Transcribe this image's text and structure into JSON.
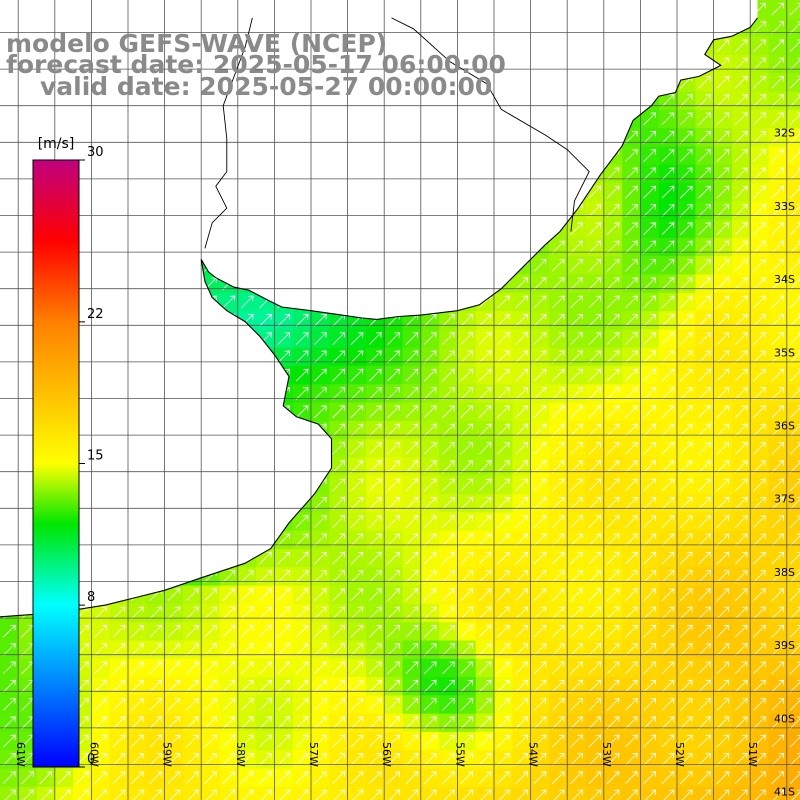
{
  "titles": {
    "model": "modelo GEFS-WAVE (NCEP)",
    "forecast": "forecast date: 2025-05-17 06:00:00",
    "valid": "valid date: 2025-05-27 00:00:00"
  },
  "colorbar": {
    "unit": "[m/s]",
    "min": 0,
    "max": 30,
    "ticks": [
      {
        "value": 0,
        "label": "0"
      },
      {
        "value": 8,
        "label": "8"
      },
      {
        "value": 15,
        "label": "15"
      },
      {
        "value": 22,
        "label": "22"
      },
      {
        "value": 30,
        "label": "30"
      }
    ],
    "colors": [
      "#0000ff",
      "#00ffff",
      "#00e600",
      "#ffff00",
      "#ff8000",
      "#ff0000",
      "#c00080"
    ]
  },
  "map": {
    "lon_range": [
      -61.5,
      -50.8
    ],
    "lat_range": [
      -41.3,
      -30.8
    ],
    "lon_ticks": [
      {
        "value": -61,
        "label": "61W"
      },
      {
        "value": -60,
        "label": "60W"
      },
      {
        "value": -59,
        "label": "59W"
      },
      {
        "value": -58,
        "label": "58W"
      },
      {
        "value": -57,
        "label": "57W"
      },
      {
        "value": -56,
        "label": "56W"
      },
      {
        "value": -55,
        "label": "55W"
      },
      {
        "value": -54,
        "label": "54W"
      },
      {
        "value": -53,
        "label": "53W"
      },
      {
        "value": -52,
        "label": "52W"
      },
      {
        "value": -51,
        "label": "51W"
      }
    ],
    "lat_ticks": [
      {
        "value": -32,
        "label": "32S"
      },
      {
        "value": -33,
        "label": "33S"
      },
      {
        "value": -34,
        "label": "34S"
      },
      {
        "value": -35,
        "label": "35S"
      },
      {
        "value": -36,
        "label": "36S"
      },
      {
        "value": -37,
        "label": "37S"
      },
      {
        "value": -38,
        "label": "38S"
      },
      {
        "value": -39,
        "label": "39S"
      },
      {
        "value": -40,
        "label": "40S"
      },
      {
        "value": -41,
        "label": "41S"
      }
    ],
    "field": "wind speed",
    "arrow_direction": "north-east",
    "colors": {
      "land": "#ffffff",
      "grid": "#555555",
      "coast": "#000000",
      "arrow": "#ffffff",
      "title": "#8a8a8a"
    }
  }
}
